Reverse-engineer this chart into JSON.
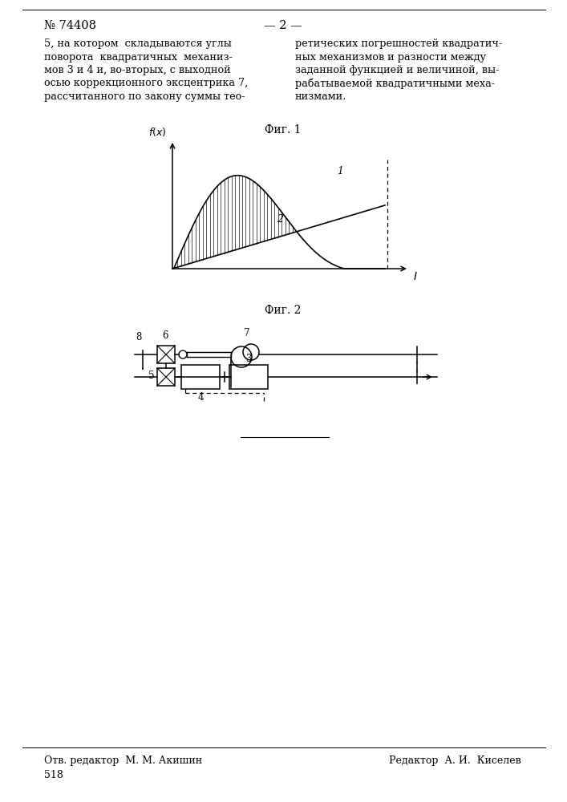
{
  "page_bg": "#ffffff",
  "header_number": "№ 74408",
  "header_page": "— 2 —",
  "left_col_lines": [
    "5, на котором  складываются углы",
    "поворота  квадратичных  механиз-",
    "мов 3 и 4 и, во-вторых, с выходной",
    "осью коррекционного эксцентрика 7,",
    "рассчитанного по закону суммы тео-"
  ],
  "right_col_lines": [
    "ретических погрешностей квадратич-",
    "ных механизмов и разности между",
    "заданной функцией и величиной, вы-",
    "рабатываемой квадратичными меха-",
    "низмами."
  ],
  "fig1_label": "Фиг. 1",
  "fig2_label": "Фиг. 2",
  "footer_left": "Отв. редактор  М. М. Акишин",
  "footer_right": "Редактор  А. И.  Киселев",
  "footer_number": "518",
  "text_color": "#000000",
  "line_color": "#000000"
}
